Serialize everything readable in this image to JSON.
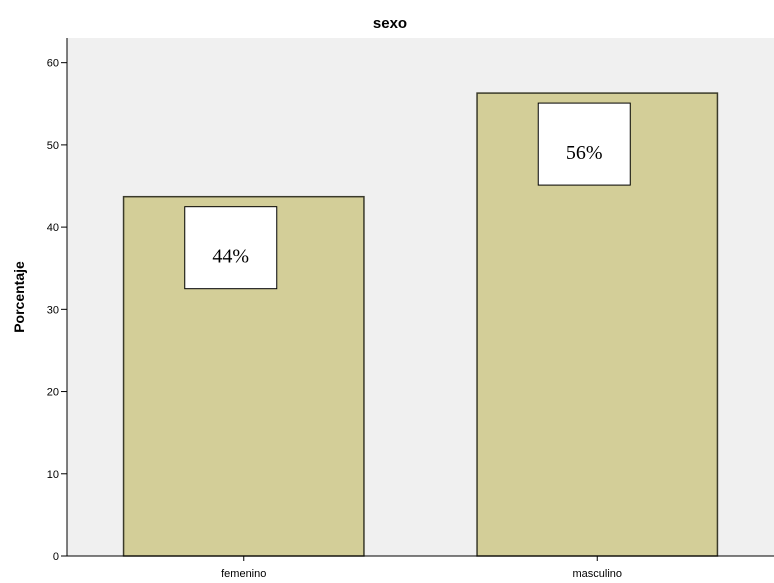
{
  "chart_data": {
    "type": "bar",
    "title": "sexo",
    "xlabel": "",
    "ylabel": "Porcentaje",
    "categories": [
      "femenino",
      "masculino"
    ],
    "values": [
      43.7,
      56.3
    ],
    "data_labels": [
      "44%",
      "56%"
    ],
    "ylim": [
      0,
      63
    ],
    "yticks": [
      0,
      10,
      20,
      30,
      40,
      50,
      60
    ],
    "grid": false,
    "legend": "none"
  },
  "colors": {
    "plot_background": "#f0f0f0",
    "bar_fill": "#d3ce98",
    "bar_stroke": "#3a3a2a",
    "axis": "#000000",
    "label_box": "#ffffff"
  }
}
